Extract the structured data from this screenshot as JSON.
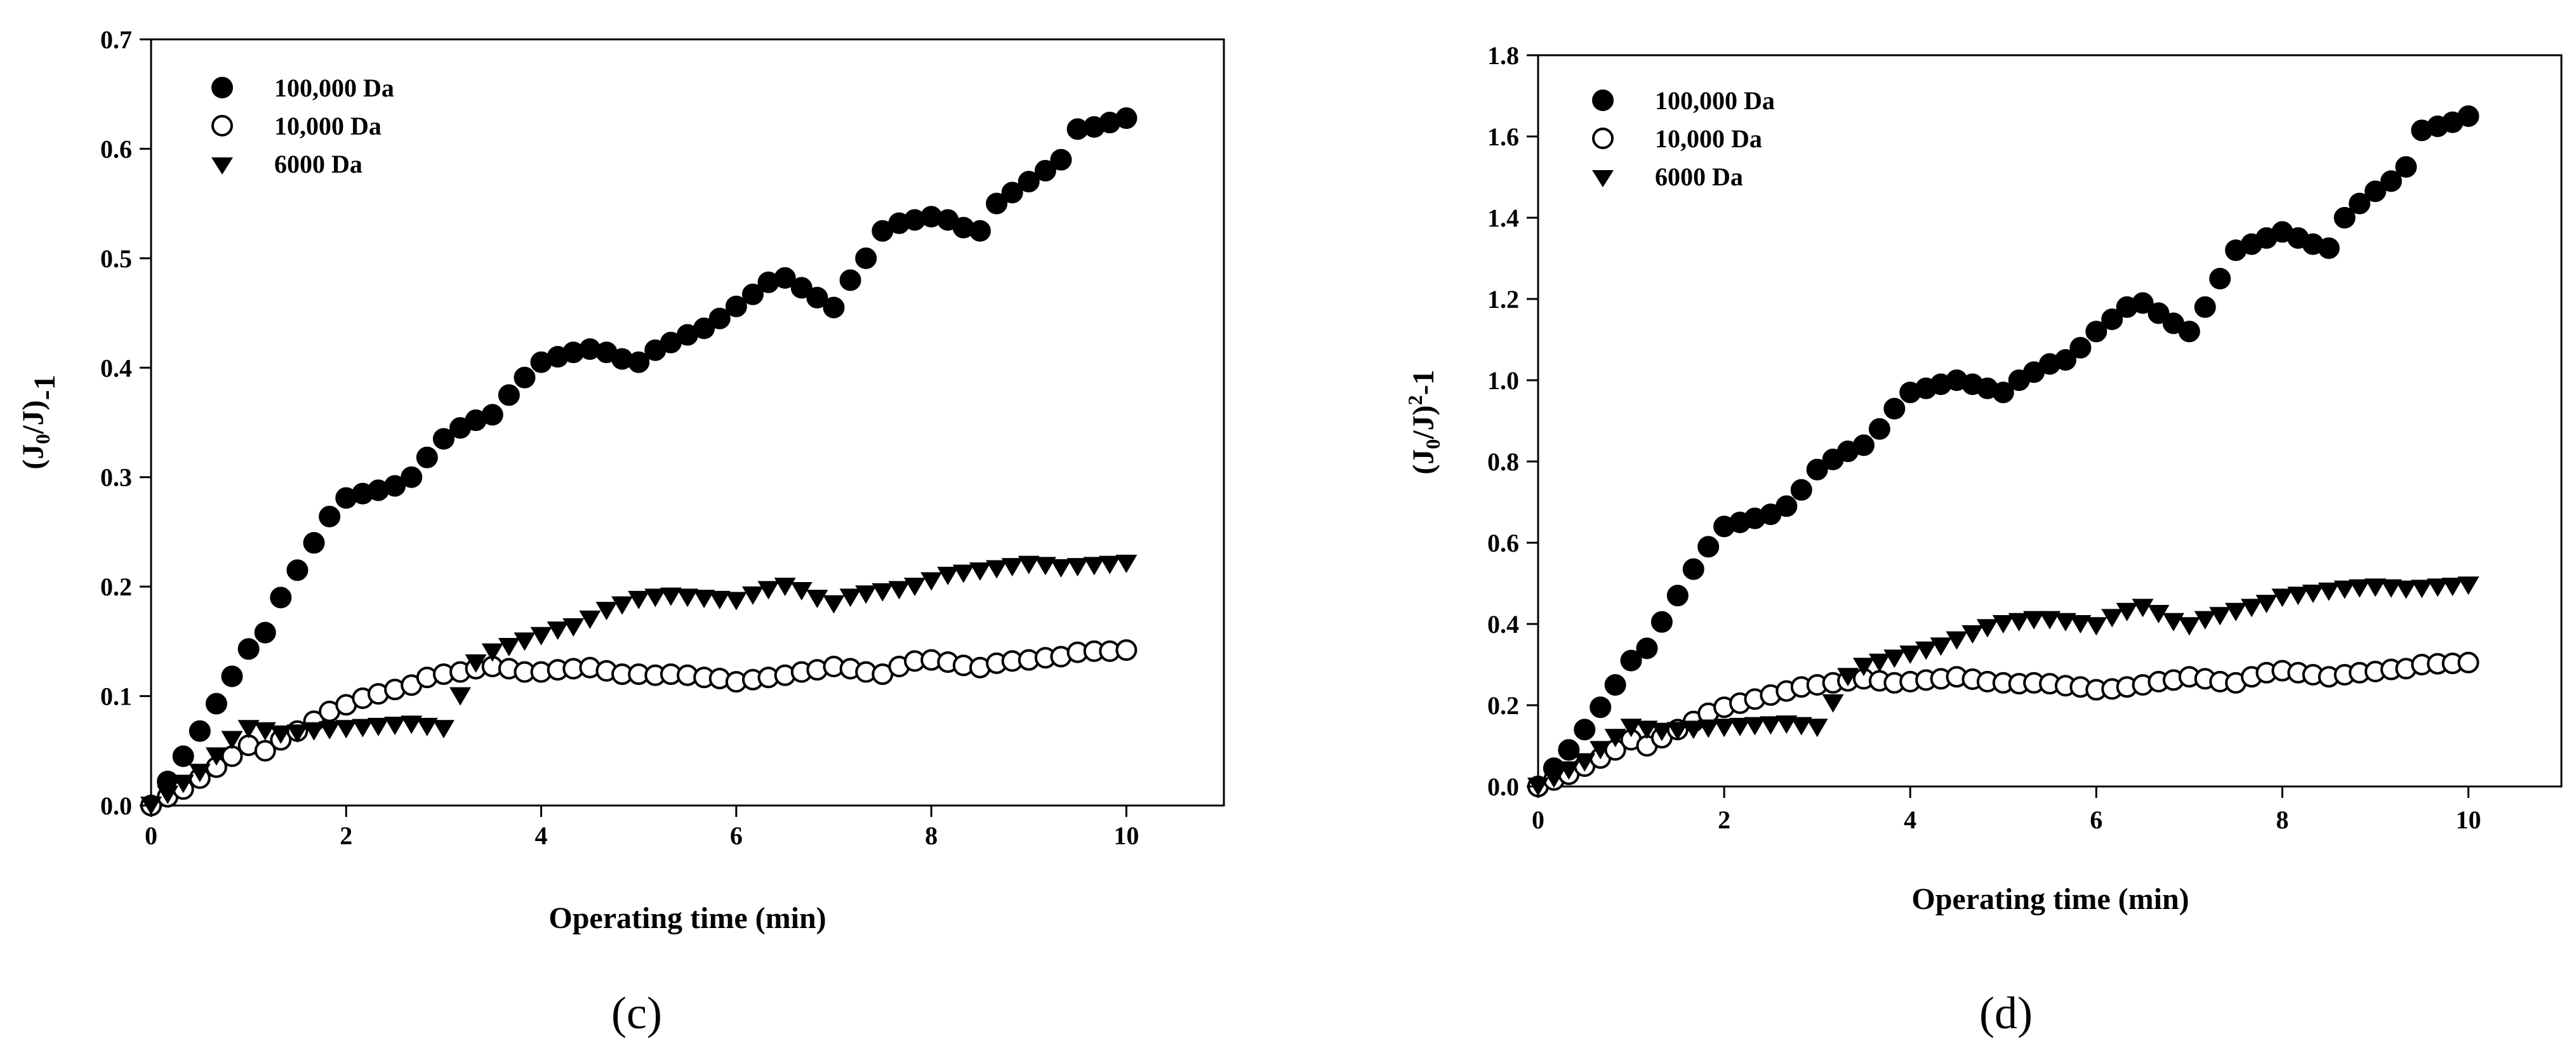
{
  "chart_data": [
    {
      "type": "scatter",
      "panel_label": "(c)",
      "title": "",
      "xlabel": "Operating time (min)",
      "ylabel_main": "(J",
      "ylabel_sub": "0",
      "ylabel_mid": "/J)",
      "ylabel_sup": "",
      "ylabel_tail": "-1",
      "xlim": [
        0,
        11
      ],
      "ylim": [
        0,
        0.7
      ],
      "x_ticks": [
        0,
        2,
        4,
        6,
        8,
        10
      ],
      "x_tick_labels": [
        "0",
        "2",
        "4",
        "6",
        "8",
        "10"
      ],
      "y_ticks": [
        0,
        0.1,
        0.2,
        0.3,
        0.4,
        0.5,
        0.6,
        0.7
      ],
      "y_tick_labels": [
        "0.0",
        "0.1",
        "0.2",
        "0.3",
        "0.4",
        "0.5",
        "0.6",
        "0.7"
      ],
      "legend_position": "top-left",
      "series": [
        {
          "name": "100,000 Da",
          "marker": "filled-circle",
          "x": [
            0,
            0.17,
            0.33,
            0.5,
            0.67,
            0.83,
            1.0,
            1.17,
            1.33,
            1.5,
            1.67,
            1.83,
            2.0,
            2.17,
            2.33,
            2.5,
            2.67,
            2.83,
            3.0,
            3.17,
            3.33,
            3.5,
            3.67,
            3.83,
            4.0,
            4.17,
            4.33,
            4.5,
            4.67,
            4.83,
            5.0,
            5.17,
            5.33,
            5.5,
            5.67,
            5.83,
            6.0,
            6.17,
            6.33,
            6.5,
            6.67,
            6.83,
            7.0,
            7.17,
            7.33,
            7.5,
            7.67,
            7.83,
            8.0,
            8.17,
            8.33,
            8.5,
            8.67,
            8.83,
            9.0,
            9.17,
            9.33,
            9.5,
            9.67,
            9.83,
            10.0
          ],
          "values": [
            0.0,
            0.022,
            0.045,
            0.068,
            0.093,
            0.118,
            0.143,
            0.158,
            0.19,
            0.215,
            0.24,
            0.264,
            0.281,
            0.285,
            0.288,
            0.292,
            0.3,
            0.318,
            0.335,
            0.345,
            0.352,
            0.357,
            0.375,
            0.391,
            0.405,
            0.41,
            0.414,
            0.417,
            0.414,
            0.408,
            0.405,
            0.416,
            0.423,
            0.43,
            0.436,
            0.445,
            0.456,
            0.467,
            0.478,
            0.482,
            0.473,
            0.464,
            0.455,
            0.48,
            0.5,
            0.525,
            0.532,
            0.535,
            0.538,
            0.535,
            0.528,
            0.525,
            0.55,
            0.56,
            0.57,
            0.58,
            0.59,
            0.618,
            0.62,
            0.624,
            0.628
          ]
        },
        {
          "name": "10,000 Da",
          "marker": "open-circle",
          "x": [
            0,
            0.17,
            0.33,
            0.5,
            0.67,
            0.83,
            1.0,
            1.17,
            1.33,
            1.5,
            1.67,
            1.83,
            2.0,
            2.17,
            2.33,
            2.5,
            2.67,
            2.83,
            3.0,
            3.17,
            3.33,
            3.5,
            3.67,
            3.83,
            4.0,
            4.17,
            4.33,
            4.5,
            4.67,
            4.83,
            5.0,
            5.17,
            5.33,
            5.5,
            5.67,
            5.83,
            6.0,
            6.17,
            6.33,
            6.5,
            6.67,
            6.83,
            7.0,
            7.17,
            7.33,
            7.5,
            7.67,
            7.83,
            8.0,
            8.17,
            8.33,
            8.5,
            8.67,
            8.83,
            9.0,
            9.17,
            9.33,
            9.5,
            9.67,
            9.83,
            10.0
          ],
          "values": [
            0.0,
            0.008,
            0.015,
            0.025,
            0.035,
            0.045,
            0.055,
            0.05,
            0.06,
            0.068,
            0.077,
            0.086,
            0.092,
            0.098,
            0.102,
            0.106,
            0.11,
            0.117,
            0.12,
            0.122,
            0.125,
            0.127,
            0.125,
            0.122,
            0.122,
            0.124,
            0.125,
            0.126,
            0.123,
            0.12,
            0.12,
            0.119,
            0.12,
            0.119,
            0.117,
            0.116,
            0.113,
            0.115,
            0.117,
            0.119,
            0.122,
            0.124,
            0.127,
            0.125,
            0.122,
            0.12,
            0.127,
            0.132,
            0.133,
            0.131,
            0.128,
            0.126,
            0.13,
            0.132,
            0.133,
            0.135,
            0.136,
            0.14,
            0.141,
            0.141,
            0.142
          ]
        },
        {
          "name": "6000 Da",
          "marker": "filled-triangle-down",
          "x": [
            0,
            0.17,
            0.33,
            0.5,
            0.67,
            0.83,
            1.0,
            1.17,
            1.33,
            1.5,
            1.67,
            1.83,
            2.0,
            2.17,
            2.33,
            2.5,
            2.67,
            2.83,
            3.0,
            3.17,
            3.33,
            3.5,
            3.67,
            3.83,
            4.0,
            4.17,
            4.33,
            4.5,
            4.67,
            4.83,
            5.0,
            5.17,
            5.33,
            5.5,
            5.67,
            5.83,
            6.0,
            6.17,
            6.33,
            6.5,
            6.67,
            6.83,
            7.0,
            7.17,
            7.33,
            7.5,
            7.67,
            7.83,
            8.0,
            8.17,
            8.33,
            8.5,
            8.67,
            8.83,
            9.0,
            9.17,
            9.33,
            9.5,
            9.67,
            9.83,
            10.0
          ],
          "values": [
            0.0,
            0.01,
            0.02,
            0.03,
            0.045,
            0.06,
            0.07,
            0.068,
            0.065,
            0.066,
            0.068,
            0.069,
            0.07,
            0.071,
            0.072,
            0.073,
            0.074,
            0.072,
            0.07,
            0.1,
            0.13,
            0.14,
            0.145,
            0.15,
            0.155,
            0.16,
            0.163,
            0.17,
            0.178,
            0.183,
            0.188,
            0.19,
            0.191,
            0.19,
            0.189,
            0.188,
            0.187,
            0.192,
            0.197,
            0.2,
            0.196,
            0.189,
            0.184,
            0.19,
            0.193,
            0.195,
            0.197,
            0.2,
            0.205,
            0.21,
            0.212,
            0.214,
            0.216,
            0.218,
            0.22,
            0.219,
            0.217,
            0.218,
            0.219,
            0.22,
            0.221
          ]
        }
      ]
    },
    {
      "type": "scatter",
      "panel_label": "(d)",
      "title": "",
      "xlabel": "Operating time (min)",
      "ylabel_main": "(J",
      "ylabel_sub": "0",
      "ylabel_mid": "/J)",
      "ylabel_sup": "2",
      "ylabel_tail": "-1",
      "xlim": [
        0,
        11
      ],
      "ylim": [
        0,
        1.8
      ],
      "x_ticks": [
        0,
        2,
        4,
        6,
        8,
        10
      ],
      "x_tick_labels": [
        "0",
        "2",
        "4",
        "6",
        "8",
        "10"
      ],
      "y_ticks": [
        0,
        0.2,
        0.4,
        0.6,
        0.8,
        1.0,
        1.2,
        1.4,
        1.6,
        1.8
      ],
      "y_tick_labels": [
        "0.0",
        "0.2",
        "0.4",
        "0.6",
        "0.8",
        "1.0",
        "1.2",
        "1.4",
        "1.6",
        "1.8"
      ],
      "legend_position": "top-left",
      "series": [
        {
          "name": "100,000 Da",
          "marker": "filled-circle",
          "x": [
            0,
            0.17,
            0.33,
            0.5,
            0.67,
            0.83,
            1.0,
            1.17,
            1.33,
            1.5,
            1.67,
            1.83,
            2.0,
            2.17,
            2.33,
            2.5,
            2.67,
            2.83,
            3.0,
            3.17,
            3.33,
            3.5,
            3.67,
            3.83,
            4.0,
            4.17,
            4.33,
            4.5,
            4.67,
            4.83,
            5.0,
            5.17,
            5.33,
            5.5,
            5.67,
            5.83,
            6.0,
            6.17,
            6.33,
            6.5,
            6.67,
            6.83,
            7.0,
            7.17,
            7.33,
            7.5,
            7.67,
            7.83,
            8.0,
            8.17,
            8.33,
            8.5,
            8.67,
            8.83,
            9.0,
            9.17,
            9.33,
            9.5,
            9.67,
            9.83,
            10.0
          ],
          "values": [
            0.0,
            0.045,
            0.09,
            0.14,
            0.195,
            0.25,
            0.31,
            0.34,
            0.405,
            0.47,
            0.535,
            0.59,
            0.64,
            0.65,
            0.66,
            0.67,
            0.69,
            0.73,
            0.78,
            0.805,
            0.825,
            0.84,
            0.88,
            0.93,
            0.97,
            0.98,
            0.99,
            1.0,
            0.99,
            0.98,
            0.97,
            1.0,
            1.02,
            1.04,
            1.05,
            1.08,
            1.12,
            1.15,
            1.18,
            1.19,
            1.165,
            1.14,
            1.12,
            1.18,
            1.25,
            1.32,
            1.335,
            1.35,
            1.365,
            1.35,
            1.335,
            1.325,
            1.4,
            1.435,
            1.465,
            1.49,
            1.525,
            1.615,
            1.625,
            1.635,
            1.65
          ]
        },
        {
          "name": "10,000 Da",
          "marker": "open-circle",
          "x": [
            0,
            0.17,
            0.33,
            0.5,
            0.67,
            0.83,
            1.0,
            1.17,
            1.33,
            1.5,
            1.67,
            1.83,
            2.0,
            2.17,
            2.33,
            2.5,
            2.67,
            2.83,
            3.0,
            3.17,
            3.33,
            3.5,
            3.67,
            3.83,
            4.0,
            4.17,
            4.33,
            4.5,
            4.67,
            4.83,
            5.0,
            5.17,
            5.33,
            5.5,
            5.67,
            5.83,
            6.0,
            6.17,
            6.33,
            6.5,
            6.67,
            6.83,
            7.0,
            7.17,
            7.33,
            7.5,
            7.67,
            7.83,
            8.0,
            8.17,
            8.33,
            8.5,
            8.67,
            8.83,
            9.0,
            9.17,
            9.33,
            9.5,
            9.67,
            9.83,
            10.0
          ],
          "values": [
            0.0,
            0.016,
            0.03,
            0.05,
            0.07,
            0.09,
            0.115,
            0.1,
            0.12,
            0.14,
            0.16,
            0.18,
            0.195,
            0.205,
            0.215,
            0.225,
            0.235,
            0.245,
            0.25,
            0.255,
            0.26,
            0.265,
            0.26,
            0.255,
            0.258,
            0.262,
            0.265,
            0.27,
            0.264,
            0.258,
            0.255,
            0.253,
            0.255,
            0.253,
            0.248,
            0.245,
            0.238,
            0.24,
            0.245,
            0.25,
            0.258,
            0.262,
            0.27,
            0.265,
            0.258,
            0.255,
            0.27,
            0.28,
            0.285,
            0.28,
            0.275,
            0.27,
            0.275,
            0.28,
            0.283,
            0.288,
            0.29,
            0.3,
            0.302,
            0.303,
            0.305
          ]
        },
        {
          "name": "6000 Da",
          "marker": "filled-triangle-down",
          "x": [
            0,
            0.17,
            0.33,
            0.5,
            0.67,
            0.83,
            1.0,
            1.17,
            1.33,
            1.5,
            1.67,
            1.83,
            2.0,
            2.17,
            2.33,
            2.5,
            2.67,
            2.83,
            3.0,
            3.17,
            3.33,
            3.5,
            3.67,
            3.83,
            4.0,
            4.17,
            4.33,
            4.5,
            4.67,
            4.83,
            5.0,
            5.17,
            5.33,
            5.5,
            5.67,
            5.83,
            6.0,
            6.17,
            6.33,
            6.5,
            6.67,
            6.83,
            7.0,
            7.17,
            7.33,
            7.5,
            7.67,
            7.83,
            8.0,
            8.17,
            8.33,
            8.5,
            8.67,
            8.83,
            9.0,
            9.17,
            9.33,
            9.5,
            9.67,
            9.83,
            10.0
          ],
          "values": [
            0.0,
            0.02,
            0.04,
            0.06,
            0.09,
            0.12,
            0.145,
            0.14,
            0.135,
            0.137,
            0.14,
            0.143,
            0.145,
            0.147,
            0.149,
            0.151,
            0.153,
            0.149,
            0.145,
            0.205,
            0.27,
            0.295,
            0.305,
            0.315,
            0.325,
            0.335,
            0.345,
            0.36,
            0.375,
            0.39,
            0.4,
            0.405,
            0.41,
            0.41,
            0.405,
            0.4,
            0.395,
            0.415,
            0.43,
            0.44,
            0.425,
            0.405,
            0.395,
            0.41,
            0.42,
            0.43,
            0.44,
            0.45,
            0.465,
            0.47,
            0.475,
            0.48,
            0.485,
            0.488,
            0.49,
            0.488,
            0.485,
            0.487,
            0.49,
            0.492,
            0.495
          ]
        }
      ]
    }
  ]
}
